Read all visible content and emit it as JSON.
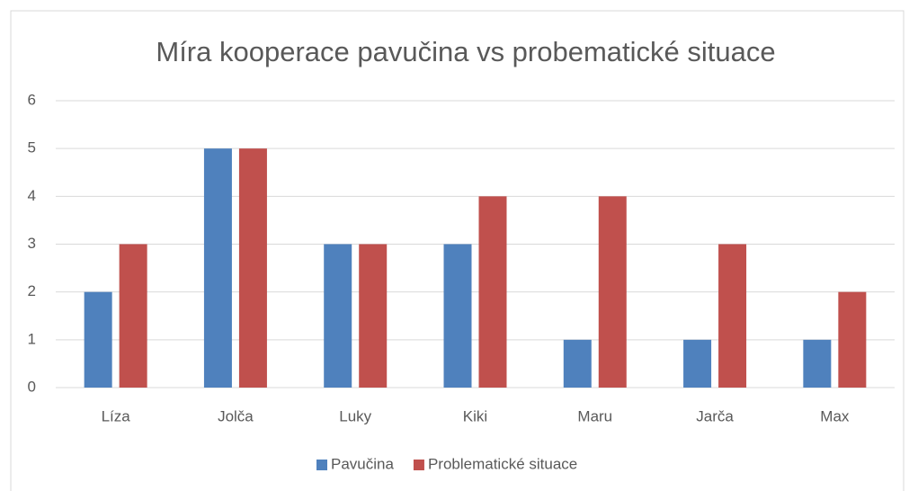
{
  "chart_data": {
    "type": "bar",
    "title": "Míra kooperace pavučina vs probematické situace",
    "categories": [
      "Líza",
      "Jolča",
      "Luky",
      "Kiki",
      "Maru",
      "Jarča",
      "Max"
    ],
    "series": [
      {
        "name": "Pavučina",
        "color": "#4f81bd",
        "values": [
          2,
          5,
          3,
          3,
          1,
          1,
          1
        ]
      },
      {
        "name": "Problematické situace",
        "color": "#c0504d",
        "values": [
          3,
          5,
          3,
          4,
          4,
          3,
          2
        ]
      }
    ],
    "ylim": [
      0,
      6
    ],
    "yticks": [
      0,
      1,
      2,
      3,
      4,
      5,
      6
    ],
    "grid": true,
    "legend": "bottom"
  }
}
